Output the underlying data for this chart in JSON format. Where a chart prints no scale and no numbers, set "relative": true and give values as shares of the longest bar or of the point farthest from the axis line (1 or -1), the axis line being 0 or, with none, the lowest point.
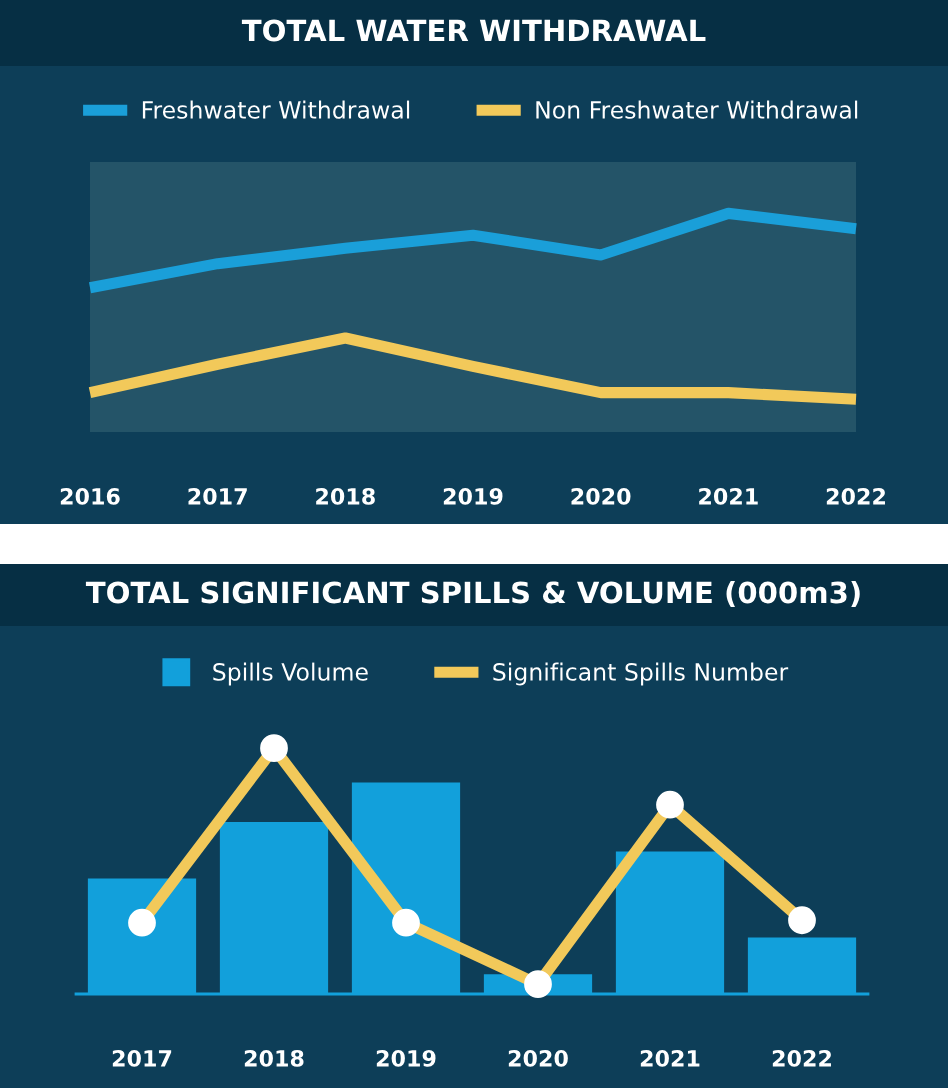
{
  "chart_data": [
    {
      "type": "line",
      "title": "TOTAL WATER WITHDRAWAL",
      "relative": true,
      "legend": "top",
      "tick_labels": "x",
      "line_style": "solid",
      "categories": [
        "2016",
        "2017",
        "2018",
        "2019",
        "2020",
        "2021",
        "2022"
      ],
      "series": [
        {
          "name": "Freshwater Withdrawal",
          "color": "#1a9fd9",
          "values": [
            0.66,
            0.77,
            0.84,
            0.9,
            0.81,
            1,
            0.93
          ]
        },
        {
          "name": "Non Freshwater Withdrawal",
          "color": "#f2c95a",
          "values": [
            0.18,
            0.31,
            0.43,
            0.3,
            0.18,
            0.18,
            0.15
          ]
        }
      ]
    },
    {
      "type": "bar",
      "title": "TOTAL SIGNIFICANT SPILLS & VOLUME (000m3)",
      "relative": true,
      "legend": "top",
      "tick_labels": "x",
      "categories": [
        "2017",
        "2018",
        "2019",
        "2020",
        "2021",
        "2022"
      ],
      "series": [
        {
          "name": "Spills Volume",
          "color": "#12a0db",
          "values": [
            0.47,
            0.7,
            0.86,
            0.08,
            0.58,
            0.23
          ]
        },
        {
          "name": "Significant Spills Number",
          "type": "line",
          "marker": "circle",
          "color": "#f2c95a",
          "values": [
            0.29,
            1,
            0.29,
            0.04,
            0.77,
            0.3
          ]
        }
      ]
    }
  ]
}
